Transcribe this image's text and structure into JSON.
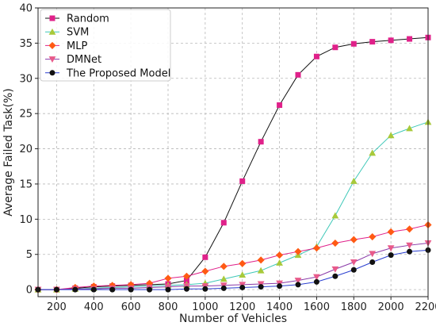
{
  "chart_data": {
    "type": "line",
    "xlabel": "Number of Vehicles",
    "ylabel": "Average Failed Task(%)",
    "xlim": [
      100,
      2200
    ],
    "ylim": [
      -1,
      40
    ],
    "x_ticks": [
      200,
      400,
      600,
      800,
      1000,
      1200,
      1400,
      1600,
      1800,
      2000,
      2200
    ],
    "y_ticks": [
      0,
      5,
      10,
      15,
      20,
      25,
      30,
      35,
      40
    ],
    "grid": true,
    "legend_position": "top-left",
    "x": [
      100,
      200,
      300,
      400,
      500,
      600,
      700,
      800,
      900,
      1000,
      1100,
      1200,
      1300,
      1400,
      1500,
      1600,
      1700,
      1800,
      1900,
      2000,
      2100,
      2200
    ],
    "series": [
      {
        "name": "Random",
        "color": "#e0218a",
        "line_color": "#111111",
        "marker": "square",
        "values": [
          0,
          0,
          0.2,
          0.4,
          0.5,
          0.6,
          0.7,
          0.8,
          1.3,
          4.6,
          9.5,
          15.4,
          21.0,
          26.2,
          30.5,
          33.1,
          34.4,
          34.9,
          35.2,
          35.4,
          35.6,
          35.8
        ]
      },
      {
        "name": "SVM",
        "color": "#a8c93a",
        "line_color": "#3ec8b8",
        "marker": "triangle-up",
        "values": [
          0,
          0,
          0.1,
          0.2,
          0.3,
          0.4,
          0.5,
          0.6,
          0.7,
          0.9,
          1.5,
          2.1,
          2.7,
          3.8,
          4.9,
          6.1,
          10.5,
          15.4,
          19.4,
          21.9,
          22.9,
          23.8
        ]
      },
      {
        "name": "MLP",
        "color": "#ff5a14",
        "line_color": "#e0218a",
        "marker": "diamond",
        "values": [
          0,
          0,
          0.3,
          0.5,
          0.6,
          0.7,
          0.9,
          1.6,
          1.9,
          2.6,
          3.3,
          3.7,
          4.2,
          4.9,
          5.4,
          5.9,
          6.6,
          7.1,
          7.5,
          8.2,
          8.6,
          9.2
        ]
      },
      {
        "name": "DMNet",
        "color": "#e85a8a",
        "line_color": "#8a3aa8",
        "marker": "triangle-down",
        "values": [
          0,
          0,
          0.1,
          0.1,
          0.2,
          0.2,
          0.3,
          0.4,
          0.5,
          0.5,
          0.6,
          0.7,
          0.8,
          0.9,
          1.3,
          1.8,
          2.9,
          3.9,
          5.1,
          5.9,
          6.3,
          6.6
        ]
      },
      {
        "name": "The Proposed Model",
        "color": "#111111",
        "line_color": "#2a3fd0",
        "marker": "circle",
        "values": [
          0,
          0,
          0,
          0,
          0,
          0,
          0,
          0,
          0.1,
          0.1,
          0.2,
          0.3,
          0.4,
          0.5,
          0.7,
          1.1,
          1.9,
          2.8,
          3.9,
          4.9,
          5.4,
          5.6
        ]
      }
    ]
  }
}
